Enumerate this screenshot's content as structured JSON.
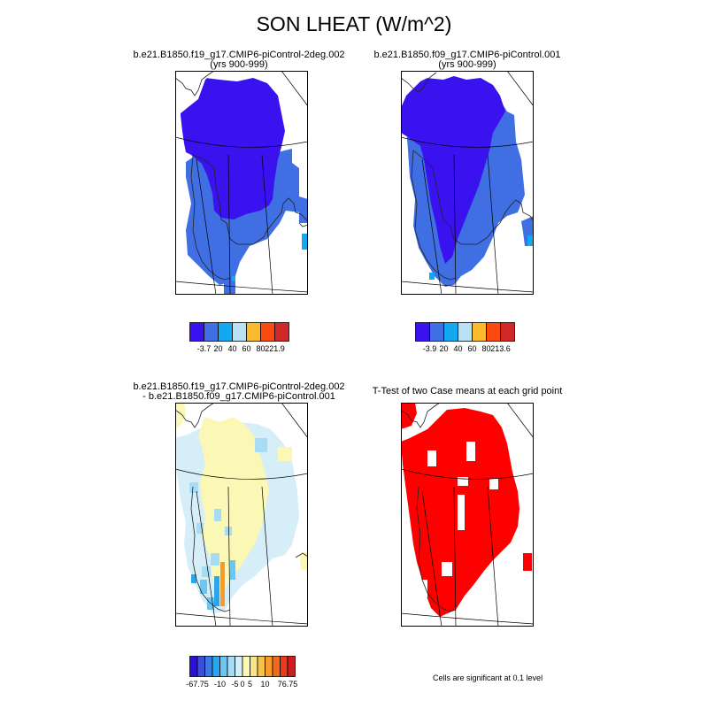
{
  "title": "SON LHEAT (W/m^2)",
  "panels": [
    {
      "line1": "b.e21.B1850.f19_g17.CMIP6-piControl-2deg.002",
      "line2": "(yrs 900-999)"
    },
    {
      "line1": "b.e21.B1850.f09_g17.CMIP6-piControl.001",
      "line2": "(yrs 900-999)"
    },
    {
      "line1": "b.e21.B1850.f19_g17.CMIP6-piControl-2deg.002",
      "line2": "- b.e21.B1850.f09_g17.CMIP6-piControl.001"
    },
    {
      "line1": "T-Test of two Case means at each grid point",
      "line2": ""
    }
  ],
  "note": "Cells are significant at 0.1 level",
  "colors": {
    "seq": [
      "#3a12f0",
      "#3f6fe2",
      "#14a8f0",
      "#b8e2f4",
      "#fbb92d",
      "#fa4a10",
      "#d02828"
    ],
    "diff": [
      "#2a10e0",
      "#3b4ed8",
      "#3d7be4",
      "#28a6ee",
      "#6cc6f2",
      "#a8dcf3",
      "#d6eef8",
      "#fbf7b4",
      "#f9e48a",
      "#f7c24a",
      "#f59b2a",
      "#f26a1e",
      "#e83a1c",
      "#cc1e1e"
    ],
    "sig": "#ff0000"
  },
  "chart_data": [
    {
      "type": "heatmap",
      "title": "b.e21.B1850.f19_g17.CMIP6-piControl-2deg.002 (yrs 900-999)",
      "colorbar": {
        "levels": [
          -3.7,
          20,
          40,
          60,
          80,
          221.9
        ],
        "labels": [
          "-3.7",
          "20",
          "40",
          "60",
          "80",
          "221.9"
        ]
      },
      "values": "mostly < 0 (-3.7 to 0) in the north, 0-20 over the south and coastal margins; a few 20-40 cells at the east and south edges"
    },
    {
      "type": "heatmap",
      "title": "b.e21.B1850.f09_g17.CMIP6-piControl.001 (yrs 900-999)",
      "colorbar": {
        "levels": [
          -3.9,
          20,
          40,
          60,
          80,
          213.6
        ],
        "labels": [
          "-3.9",
          "20",
          "40",
          "60",
          "80",
          "213.6"
        ]
      },
      "values": "mostly < 0 (-3.9 to 0) in the north and interior, 0-20 along the margins and the south; a few 20-40 cells at the south and east edges"
    },
    {
      "type": "heatmap",
      "title": "b.e21.B1850.f19_g17.CMIP6-piControl-2deg.002 - b.e21.B1850.f09_g17.CMIP6-piControl.001",
      "colorbar": {
        "labels": [
          "-67.75",
          "-10",
          "-5",
          "0",
          "5",
          "10",
          "76.75"
        ]
      },
      "values": "mostly between -5 and 5; negative margins, slightly positive interior"
    },
    {
      "type": "heatmap",
      "title": "T-Test of two Case means at each grid point",
      "values": "nearly all cells significant at the 0.1 level"
    }
  ]
}
